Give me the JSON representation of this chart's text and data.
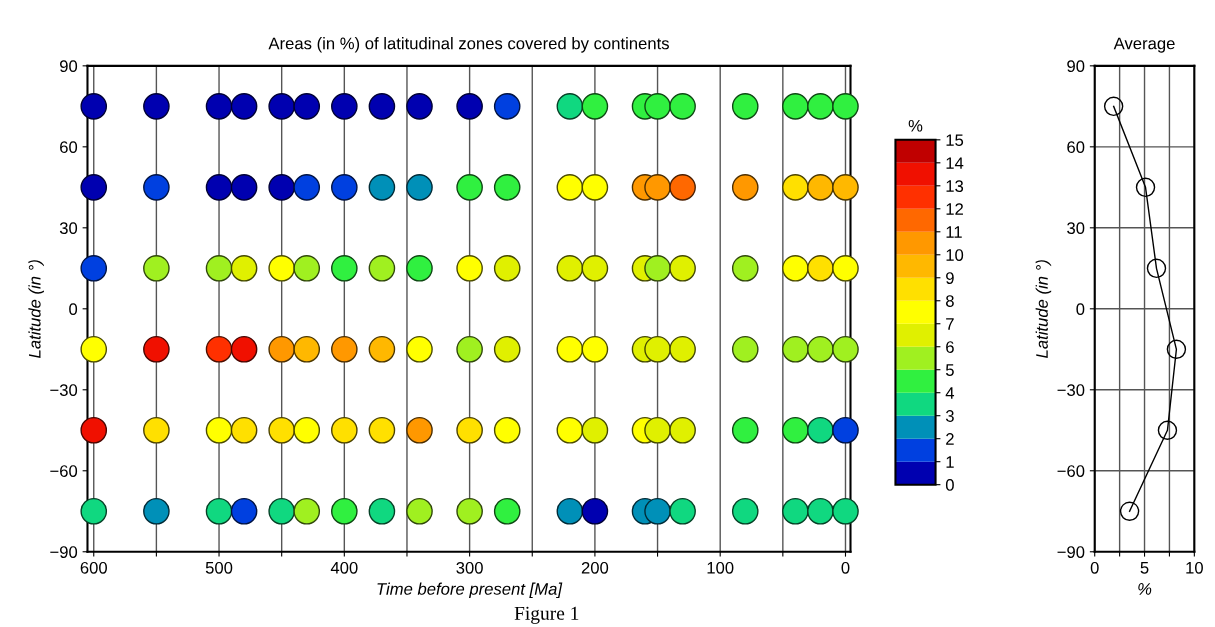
{
  "chart_data": [
    {
      "type": "scatter",
      "title": "Areas (in %) of latitudinal zones covered by continents",
      "xlabel": "Time before present [Ma]",
      "ylabel": "Latitude (in °)",
      "clabel": "%",
      "xlim": [
        605,
        -4
      ],
      "ylim": [
        -90,
        90
      ],
      "xticks": [
        600,
        {
          "value": 550,
          "label": null
        },
        500,
        {
          "value": 450,
          "label": null
        },
        400,
        {
          "value": 350,
          "label": null
        },
        300,
        {
          "value": 250,
          "label": null
        },
        200,
        {
          "value": 150,
          "label": null
        },
        100,
        {
          "value": 50,
          "label": null
        },
        0
      ],
      "yticks": [
        90,
        60,
        30,
        0,
        -30,
        -60,
        -90
      ],
      "clim": [
        0,
        15
      ],
      "cticks": [
        0,
        1,
        2,
        3,
        4,
        5,
        6,
        7,
        8,
        9,
        10,
        11,
        12,
        13,
        14,
        15
      ],
      "grid": "x",
      "marker": "circle",
      "x": [
        600,
        550,
        500,
        480,
        450,
        430,
        400,
        370,
        340,
        300,
        270,
        220,
        200,
        160,
        150,
        130,
        80,
        40,
        20,
        0
      ],
      "series": [
        {
          "values": [
            75,
            75,
            75,
            75,
            75,
            75,
            75,
            75,
            75,
            75,
            75,
            75,
            75,
            75,
            75,
            75,
            75,
            75,
            75,
            75
          ],
          "cvalues": [
            0.5,
            0.5,
            0.5,
            0.5,
            0.5,
            0.5,
            0.5,
            0.5,
            0.5,
            0.5,
            1.5,
            3.5,
            4.5,
            4.5,
            4.5,
            4.5,
            4.5,
            4.5,
            4.5,
            4.5
          ],
          "colors": [
            "#0000b0",
            "#0000b0",
            "#0000b0",
            "#0000b0",
            "#0000b0",
            "#0000b0",
            "#0000b0",
            "#0000b0",
            "#0000b0",
            "#0000b0",
            "#0040e0",
            "#10d880",
            "#30f040",
            "#30f040",
            "#30f040",
            "#30f040",
            "#30f040",
            "#30f040",
            "#30f040",
            "#30f040"
          ]
        },
        {
          "values": [
            45,
            45,
            45,
            45,
            45,
            45,
            45,
            45,
            45,
            45,
            45,
            45,
            45,
            45,
            45,
            45,
            45,
            45,
            45,
            45
          ],
          "cvalues": [
            0.5,
            1.5,
            0.5,
            0.5,
            0.5,
            1.5,
            1.5,
            2.5,
            2.5,
            4.5,
            4.5,
            7.5,
            7.5,
            10.5,
            10.5,
            11.5,
            10.5,
            8.5,
            9.5,
            9.5
          ],
          "colors": [
            "#0000b0",
            "#0040e0",
            "#0000b0",
            "#0000b0",
            "#0000b0",
            "#0040e0",
            "#0040e0",
            "#0090b8",
            "#0090b8",
            "#30f040",
            "#30f040",
            "#ffff00",
            "#ffff00",
            "#ff9800",
            "#ff9800",
            "#ff6800",
            "#ff9800",
            "#ffe000",
            "#ffb800",
            "#ffb800"
          ]
        },
        {
          "values": [
            15,
            15,
            15,
            15,
            15,
            15,
            15,
            15,
            15,
            15,
            15,
            15,
            15,
            15,
            15,
            15,
            15,
            15,
            15,
            15
          ],
          "cvalues": [
            1.5,
            5.5,
            5.5,
            6.5,
            7.5,
            5.5,
            4.5,
            5.5,
            4.5,
            7.5,
            6.5,
            6.5,
            6.5,
            6.5,
            5.5,
            6.5,
            5.5,
            7.5,
            8.5,
            7.5
          ],
          "colors": [
            "#0040e0",
            "#a0f020",
            "#a0f020",
            "#e0f000",
            "#ffff00",
            "#a0f020",
            "#30f040",
            "#a0f020",
            "#30f040",
            "#ffff00",
            "#e0f000",
            "#e0f000",
            "#e0f000",
            "#e0f000",
            "#a0f020",
            "#e0f000",
            "#a0f020",
            "#ffff00",
            "#ffe000",
            "#ffff00"
          ]
        },
        {
          "values": [
            -15,
            -15,
            -15,
            -15,
            -15,
            -15,
            -15,
            -15,
            -15,
            -15,
            -15,
            -15,
            -15,
            -15,
            -15,
            -15,
            -15,
            -15,
            -15,
            -15
          ],
          "cvalues": [
            7.5,
            13.5,
            12.5,
            13.5,
            10.5,
            9.5,
            10.5,
            9.5,
            7.5,
            5.5,
            6.5,
            7.5,
            7.5,
            6.5,
            6.5,
            6.5,
            5.5,
            5.5,
            5.5,
            5.5
          ],
          "colors": [
            "#ffff00",
            "#f01000",
            "#ff3000",
            "#f01000",
            "#ff9800",
            "#ffb800",
            "#ff9800",
            "#ffb800",
            "#ffff00",
            "#a0f020",
            "#e0f000",
            "#ffff00",
            "#ffff00",
            "#e0f000",
            "#e0f000",
            "#e0f000",
            "#a0f020",
            "#a0f020",
            "#a0f020",
            "#a0f020"
          ]
        },
        {
          "values": [
            -45,
            -45,
            -45,
            -45,
            -45,
            -45,
            -45,
            -45,
            -45,
            -45,
            -45,
            -45,
            -45,
            -45,
            -45,
            -45,
            -45,
            -45,
            -45,
            -45
          ],
          "cvalues": [
            13.5,
            8.5,
            7.5,
            8.5,
            8.5,
            7.5,
            8.5,
            8.5,
            10.5,
            8.5,
            7.5,
            7.5,
            6.5,
            7.5,
            6.5,
            6.5,
            4.5,
            4.5,
            3.5,
            1.5
          ],
          "colors": [
            "#f01000",
            "#ffe000",
            "#ffff00",
            "#ffe000",
            "#ffe000",
            "#ffff00",
            "#ffe000",
            "#ffe000",
            "#ff9800",
            "#ffe000",
            "#ffff00",
            "#ffff00",
            "#e0f000",
            "#ffff00",
            "#e0f000",
            "#e0f000",
            "#30f040",
            "#30f040",
            "#10d880",
            "#0040e0"
          ]
        },
        {
          "values": [
            -75,
            -75,
            -75,
            -75,
            -75,
            -75,
            -75,
            -75,
            -75,
            -75,
            -75,
            -75,
            -75,
            -75,
            -75,
            -75,
            -75,
            -75,
            -75,
            -75
          ],
          "cvalues": [
            3.5,
            2.5,
            3.5,
            1.5,
            3.5,
            5.5,
            4.5,
            3.5,
            5.5,
            5.5,
            4.5,
            2.5,
            0.5,
            2.5,
            2.5,
            3.5,
            3.5,
            3.5,
            3.5,
            3.5
          ],
          "colors": [
            "#10d880",
            "#0090b8",
            "#10d880",
            "#0040e0",
            "#10d880",
            "#a0f020",
            "#30f040",
            "#10d880",
            "#a0f020",
            "#a0f020",
            "#30f040",
            "#0090b8",
            "#0000b0",
            "#0090b8",
            "#0090b8",
            "#10d880",
            "#10d880",
            "#10d880",
            "#10d880",
            "#10d880"
          ]
        }
      ],
      "annotations": [
        "Figure 1"
      ]
    },
    {
      "type": "line",
      "title": "Average",
      "xlabel": "%",
      "ylabel": "Latitude (in °)",
      "xlim": [
        0,
        10
      ],
      "ylim": [
        -90,
        90
      ],
      "xticks": [
        0,
        {
          "value": 2.5,
          "label": null
        },
        5,
        {
          "value": 7.5,
          "label": null
        },
        10
      ],
      "yticks": [
        90,
        60,
        30,
        0,
        -30,
        -60,
        -90
      ],
      "grid": true,
      "marker": "circle",
      "line_style": "solid",
      "series": [
        {
          "color": "#000000",
          "x": [
            1.9,
            5.1,
            6.2,
            8.2,
            7.3,
            3.5
          ],
          "values": [
            75,
            45,
            15,
            -15,
            -45,
            -75
          ]
        }
      ]
    }
  ]
}
